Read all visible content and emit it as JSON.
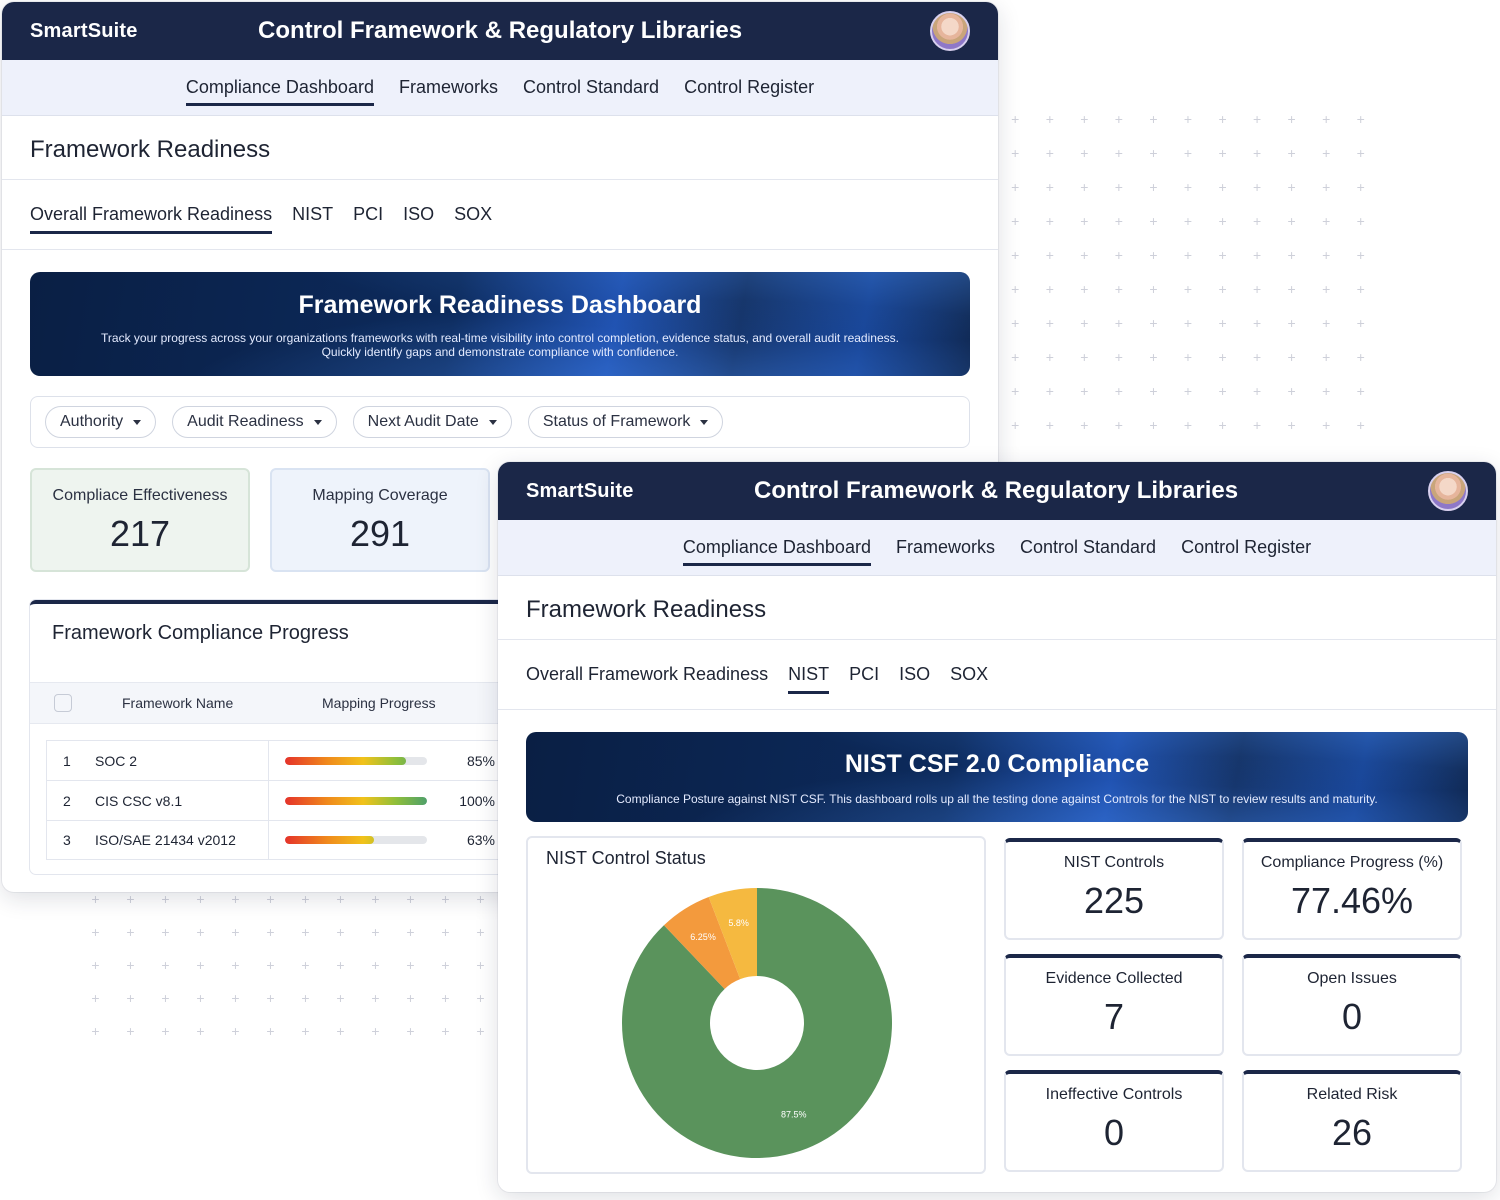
{
  "brand": "SmartSuite",
  "app_title": "Control Framework & Regulatory Libraries",
  "nav_tabs": [
    "Compliance Dashboard",
    "Frameworks",
    "Control Standard",
    "Control Register"
  ],
  "section_title": "Framework Readiness",
  "sub_tabs": [
    "Overall Framework Readiness",
    "NIST",
    "PCI",
    "ISO",
    "SOX"
  ],
  "back_window": {
    "active_nav_tab": "Compliance Dashboard",
    "active_sub_tab": "Overall Framework Readiness",
    "banner": {
      "title": "Framework Readiness Dashboard",
      "description": "Track your progress across your organizations frameworks with real-time visibility into control completion, evidence status, and overall audit readiness. Quickly identify gaps and demonstrate compliance with confidence."
    },
    "filters": [
      "Authority",
      "Audit Readiness",
      "Next Audit Date",
      "Status of Framework"
    ],
    "metrics": [
      {
        "label": "Compliace Effectiveness",
        "value": "217"
      },
      {
        "label": "Mapping Coverage",
        "value": "291"
      }
    ],
    "progress_card": {
      "title": "Framework Compliance Progress",
      "columns": [
        "Framework Name",
        "Mapping Progress"
      ],
      "rows": [
        {
          "index": "1",
          "name": "SOC 2",
          "progress": 0.85,
          "pct_label": "85%"
        },
        {
          "index": "2",
          "name": "CIS CSC v8.1",
          "progress": 1.0,
          "pct_label": "100%"
        },
        {
          "index": "3",
          "name": "ISO/SAE 21434 v2012",
          "progress": 0.63,
          "pct_label": "63%"
        }
      ]
    }
  },
  "front_window": {
    "active_nav_tab": "Compliance Dashboard",
    "active_sub_tab": "NIST",
    "banner": {
      "title": "NIST CSF 2.0 Compliance",
      "description": "Compliance Posture against NIST CSF. This dashboard rolls up all the testing done against Controls for the NIST to review results and maturity."
    },
    "pie_card_title": "NIST Control Status",
    "metrics": [
      {
        "label": "NIST Controls",
        "value": "225"
      },
      {
        "label": "Compliance Progress (%)",
        "value": "77.46%"
      },
      {
        "label": "Evidence Collected",
        "value": "7"
      },
      {
        "label": "Open Issues",
        "value": "0"
      },
      {
        "label": "Ineffective Controls",
        "value": "0"
      },
      {
        "label": "Related Risk",
        "value": "26"
      }
    ]
  },
  "chart_data": {
    "type": "pie",
    "title": "NIST Control Status",
    "slices": [
      {
        "value": 87.5,
        "label": "87.5%",
        "color": "#5a935c"
      },
      {
        "value": 6.25,
        "label": "6.25%",
        "color": "#f39a3d"
      },
      {
        "value": 5.8,
        "label": "5.8%",
        "color": "#f5b940"
      }
    ],
    "donut_hole": true
  },
  "colors": {
    "navy": "#1b2748",
    "tab_bg": "#eef1fb"
  },
  "icons": {
    "avatar": "user-avatar-icon",
    "dropdown": "chevron-down-icon",
    "decor": "plus-pattern"
  }
}
